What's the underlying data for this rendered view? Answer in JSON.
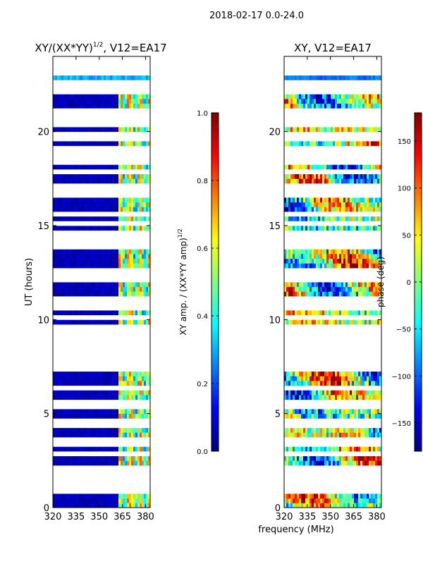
{
  "figure": {
    "suptitle": "2018-02-17 0.0-24.0",
    "shared_xlabel": "frequency (MHz)"
  },
  "colors": {
    "jet": [
      "#00007f",
      "#0000ff",
      "#007fff",
      "#00ffff",
      "#7fff7f",
      "#ffff00",
      "#ff7f00",
      "#ff0000",
      "#7f0000"
    ],
    "flag": "#ffffff"
  },
  "chart_data": [
    {
      "type": "heatmap",
      "title_base": "XY/(XX*YY)",
      "title_sup": "1/2",
      "title_rest": ", V12=EA17",
      "xlabel": "",
      "ylabel": "UT (hours)",
      "xlim": [
        320,
        383
      ],
      "ylim": [
        0,
        24
      ],
      "xticks": [
        320,
        335,
        350,
        365,
        380
      ],
      "yticks": [
        0,
        5,
        10,
        15,
        20
      ],
      "description": "Low amplitude (~0.05-0.1) below 362 MHz; elevated, striped amplitude (0.3-0.8) in 362-382 MHz band; many flagged (white) time rows",
      "colorbar": {
        "label_base": "XY amp. / (XX*YY amp)",
        "label_sup": "1/2",
        "range": [
          0.0,
          1.0
        ],
        "ticks": [
          0.0,
          0.2,
          0.4,
          0.6,
          0.8,
          1.0
        ],
        "tick_labels": [
          "0.0",
          "0.2",
          "0.4",
          "0.6",
          "0.8",
          "1.0"
        ]
      }
    },
    {
      "type": "heatmap",
      "title": "XY, V12=EA17",
      "xlabel": "frequency (MHz)",
      "ylabel": "",
      "xlim": [
        320,
        383
      ],
      "ylim": [
        0,
        24
      ],
      "xticks": [
        320,
        335,
        350,
        365,
        380
      ],
      "yticks": [
        0,
        5,
        10,
        15,
        20
      ],
      "description": "Noisy phase (deg) spanning -180 to 180 across all frequencies; same flagged rows as amplitude panel",
      "colorbar": {
        "label": "phase (deg)",
        "range": [
          -180,
          180
        ],
        "ticks": [
          -150,
          -100,
          -50,
          0,
          50,
          100,
          150
        ],
        "tick_labels": [
          "−150",
          "−100",
          "−50",
          "0",
          "50",
          "100",
          "150"
        ]
      }
    }
  ],
  "flagged_rows_hours": [
    0.9,
    1.1,
    1.3,
    1.5,
    1.9,
    2.05,
    2.9,
    3.3,
    3.6,
    4.5,
    5.5,
    6.4,
    7.5,
    7.7,
    7.9,
    8.1,
    8.3,
    8.5,
    8.7,
    8.9,
    9.15,
    9.4,
    9.6,
    10.2,
    10.6,
    11.0,
    12.15,
    12.45,
    12.7,
    14.0,
    14.3,
    14.55,
    15.1,
    15.7,
    16.6,
    17.0,
    17.2,
    17.9,
    18.4,
    18.7,
    19.0,
    19.2,
    19.55,
    19.9,
    20.4,
    20.65,
    21.0,
    22.05,
    22.25,
    22.6,
    23.15,
    23.35,
    23.55,
    23.75,
    23.9
  ]
}
